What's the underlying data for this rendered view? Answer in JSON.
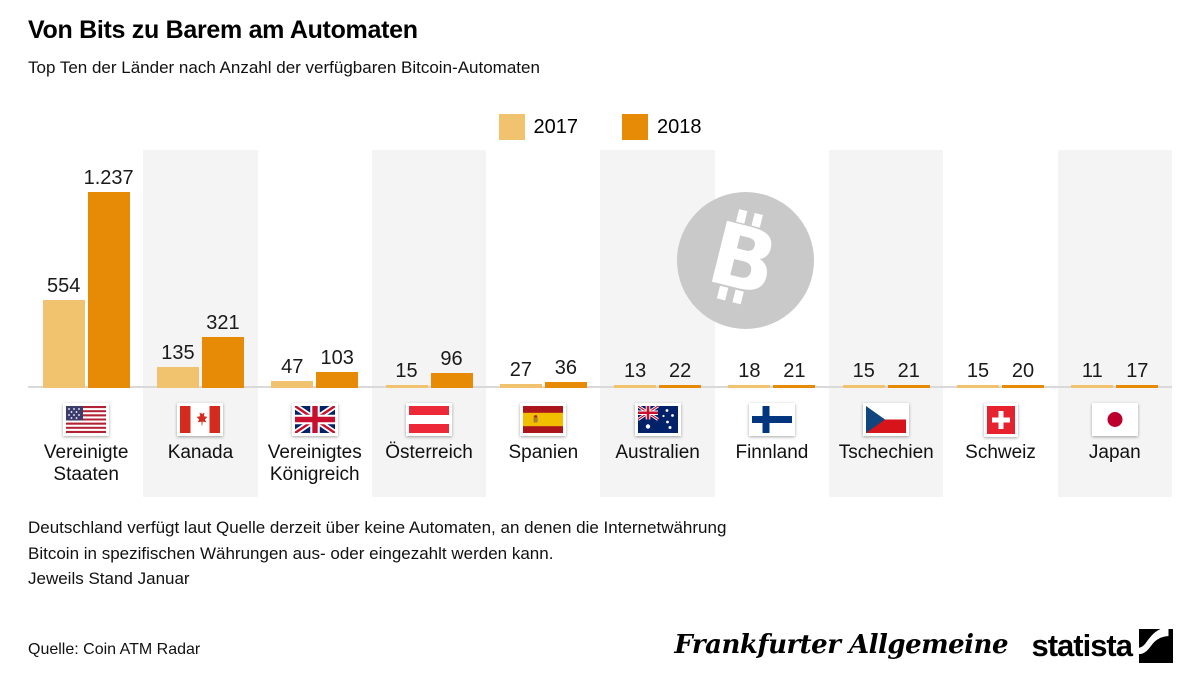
{
  "header": {
    "title": "Von Bits zu Barem am Automaten",
    "subtitle": "Top Ten der Länder nach Anzahl der verfügbaren Bitcoin-Automaten"
  },
  "legend": {
    "items": [
      {
        "label": "2017",
        "color": "#F2C36F"
      },
      {
        "label": "2018",
        "color": "#E78A05"
      }
    ]
  },
  "chart_data": {
    "type": "bar",
    "title": "Von Bits zu Barem am Automaten",
    "subtitle": "Top Ten der Länder nach Anzahl der verfügbaren Bitcoin-Automaten",
    "categories": [
      "Vereinigte Staaten",
      "Kanada",
      "Vereinigtes Königreich",
      "Österreich",
      "Spanien",
      "Australien",
      "Finnland",
      "Tschechien",
      "Schweiz",
      "Japan"
    ],
    "flags": [
      "us",
      "ca",
      "gb",
      "at",
      "es",
      "au",
      "fi",
      "cz",
      "ch",
      "jp"
    ],
    "series": [
      {
        "name": "2017",
        "color": "#F2C36F",
        "values": [
          554,
          135,
          47,
          15,
          27,
          13,
          18,
          15,
          15,
          11
        ],
        "labels": [
          "554",
          "135",
          "47",
          "15",
          "27",
          "13",
          "18",
          "15",
          "15",
          "11"
        ]
      },
      {
        "name": "2018",
        "color": "#E78A05",
        "values": [
          1237,
          321,
          103,
          96,
          36,
          22,
          21,
          21,
          20,
          17
        ],
        "labels": [
          "1.237",
          "321",
          "103",
          "96",
          "36",
          "22",
          "21",
          "21",
          "20",
          "17"
        ]
      }
    ],
    "ylim": [
      0,
      1300
    ],
    "grid": false,
    "legend_position": "top-center",
    "value_labels_shown": true,
    "watermark": "bitcoin-icon"
  },
  "watermark": {
    "icon": "bitcoin-icon",
    "circle_color": "#C9C9C9",
    "glyph_color": "#FFFFFF"
  },
  "footnotes": {
    "line1": "Deutschland verfügt laut Quelle derzeit über keine Automaten, an denen die Internetwährung",
    "line2": "Bitcoin in spezifischen Währungen aus- oder eingezahlt werden kann.",
    "line3": "Jeweils Stand Januar"
  },
  "source": {
    "label": "Quelle: Coin ATM Radar"
  },
  "branding": {
    "publisher": "Frankfurter Allgemeine",
    "provider": "statista"
  }
}
